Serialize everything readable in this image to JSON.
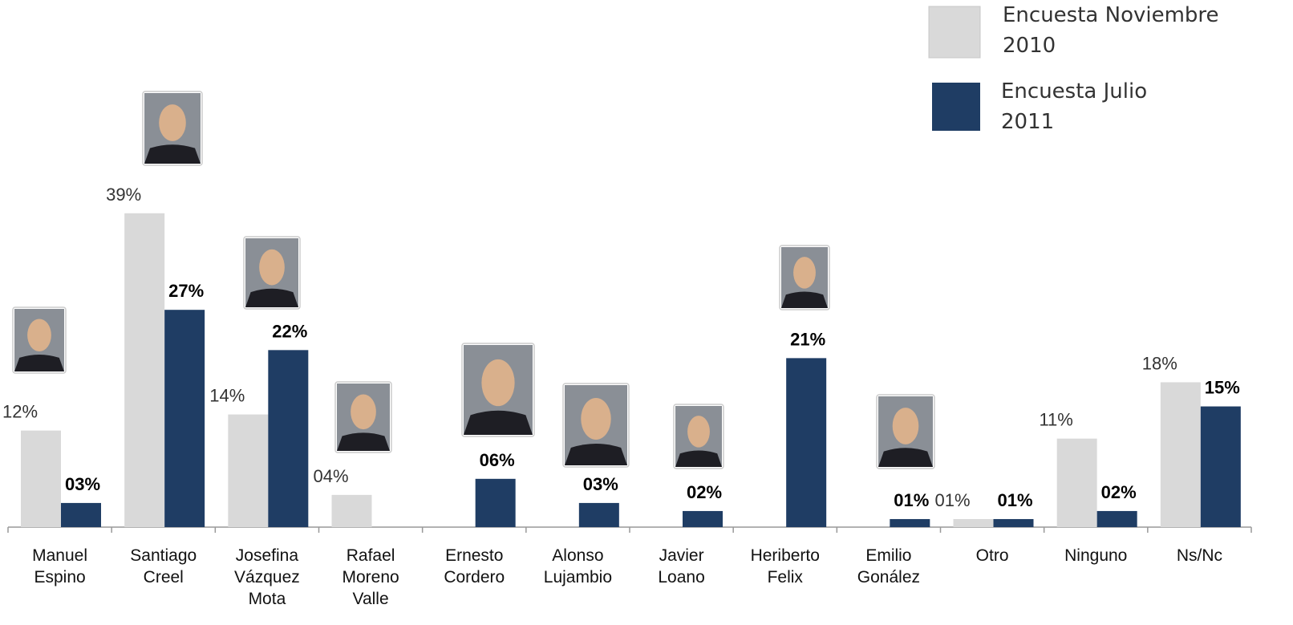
{
  "chart_data": {
    "type": "bar",
    "categories": [
      "Manuel Espino",
      "Santiago Creel",
      "Josefina Vázquez Mota",
      "Rafael Moreno Valle",
      "Ernesto Cordero",
      "Alonso Lujambio",
      "Javier Loano",
      "Heriberto Felix",
      "Emilio Gonález",
      "Otro",
      "Ninguno",
      "Ns/Nc"
    ],
    "series": [
      {
        "name": "Encuesta Noviembre 2010",
        "color": "#d9d9d9",
        "values": [
          12,
          39,
          14,
          4,
          null,
          null,
          null,
          null,
          null,
          1,
          11,
          18
        ],
        "value_labels": [
          "12%",
          "39%",
          "14%",
          "04%",
          null,
          null,
          null,
          null,
          null,
          "01%",
          "11%",
          "18%"
        ]
      },
      {
        "name": "Encuesta Julio 2011",
        "color": "#1f3d64",
        "values": [
          3,
          27,
          22,
          null,
          6,
          3,
          2,
          21,
          1,
          1,
          2,
          15
        ],
        "value_labels": [
          "03%",
          "27%",
          "22%",
          null,
          "06%",
          "03%",
          "02%",
          "21%",
          "01%",
          "01%",
          "02%",
          "15%"
        ]
      }
    ]
  }
}
